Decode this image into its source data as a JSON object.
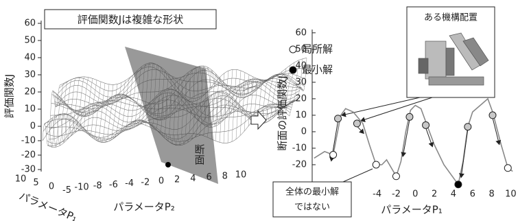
{
  "left_panel": {
    "title": "評価関数Jは複雑な形状",
    "z_label": "評価関数J",
    "z_ticks": [
      60,
      50,
      40,
      30,
      20,
      10,
      0,
      -10,
      -20,
      -30
    ],
    "p2_ticks": [
      -10,
      -8,
      -6,
      -4,
      -2,
      0,
      2,
      4,
      6,
      8,
      10
    ],
    "p2_label": "パラメータP₂",
    "p1_ticks": [
      10,
      5,
      0,
      -5
    ],
    "p1_label": "パラメータP₁",
    "section_label": "断面"
  },
  "chart_data": {
    "type": "line",
    "y_label": "断面の評価関数J",
    "x_label": "パラメータP₁",
    "box_title": "ある機構配置",
    "callout": [
      "全体の最小解",
      "ではない"
    ],
    "xlim": [
      -10.8,
      10.4
    ],
    "ylim": [
      -35,
      62
    ],
    "xticks": [
      -4,
      -2,
      0,
      2,
      4,
      6,
      8,
      10
    ],
    "yticks": [
      60,
      50,
      40,
      30,
      20,
      10,
      0,
      -10,
      -20
    ],
    "curve": {
      "color": "#888888",
      "x": [
        -10.6,
        -9.5,
        -8.6,
        -8.3,
        -7.8,
        -7.3,
        -6.5,
        -5.5,
        -4.8,
        -4.1,
        -3.5,
        -3,
        -2.5,
        -2,
        -1.5,
        -1,
        -0.5,
        0,
        0.6,
        1.1,
        2,
        3,
        4,
        4.5,
        5,
        5.5,
        6,
        7,
        7.6,
        8.1,
        9,
        9.7,
        10.2
      ],
      "values": [
        -16,
        -12,
        -14,
        -5,
        10,
        14,
        12,
        5,
        -8,
        -20,
        -20,
        -17,
        -22,
        -27,
        -18,
        0,
        13,
        16,
        14,
        6,
        -8,
        -20,
        -28,
        -32,
        -18,
        3,
        12,
        17,
        20,
        12,
        -8,
        -22,
        -24
      ]
    },
    "starts": {
      "color": "#c8c8c8",
      "x": [
        -8.1,
        -6.1,
        -0.6,
        1.1,
        5.5,
        8.1
      ],
      "values": [
        8,
        5,
        9,
        4,
        3,
        10
      ]
    },
    "series": [
      {
        "name": "局所解",
        "color": "#ffffff",
        "x": [
          -8.6,
          -4.1,
          -2,
          9.7
        ],
        "values": [
          -14,
          -20,
          -27,
          -22
        ]
      },
      {
        "name": "最小解",
        "color": "#000000",
        "x": [
          4.5
        ],
        "values": [
          -32
        ]
      }
    ]
  }
}
